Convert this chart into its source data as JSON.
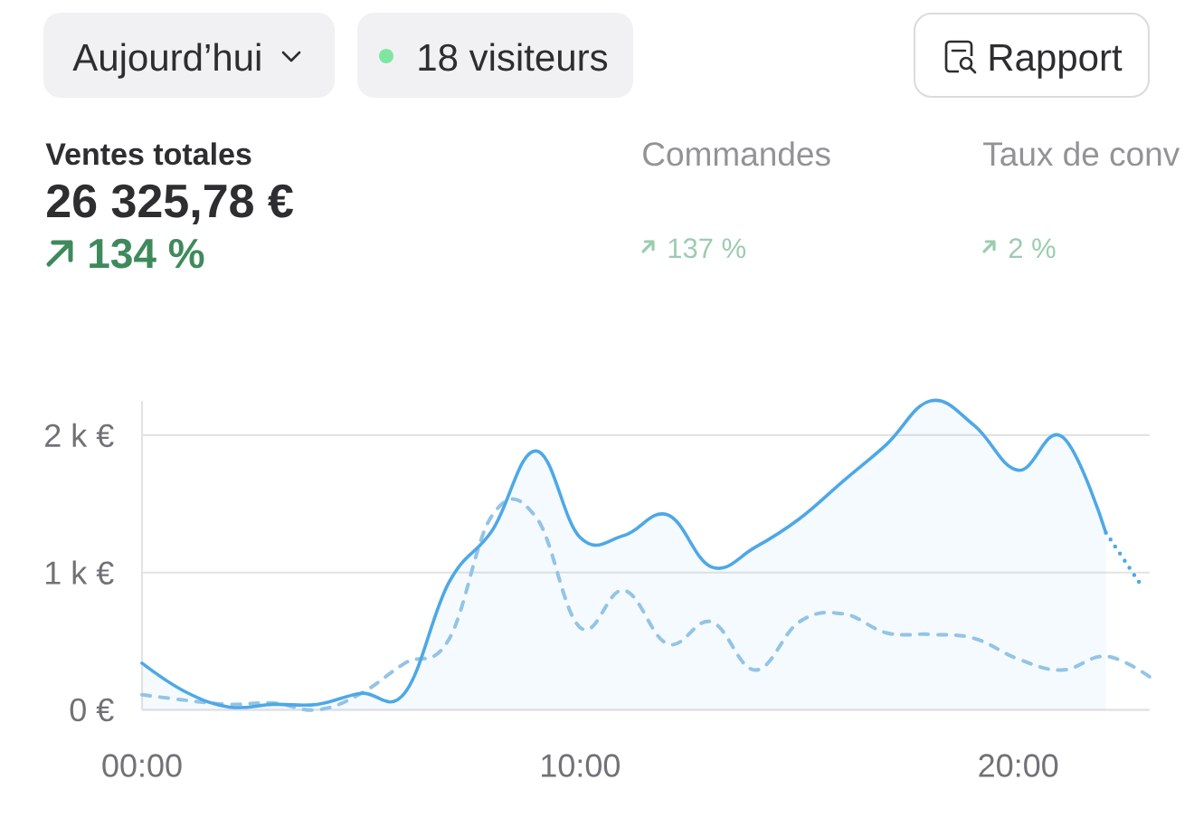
{
  "chart_data": {
    "type": "line",
    "title": "Ventes totales",
    "subtitle": "26 325,78 €",
    "annotations": [
      "Aujourd’hui",
      "18 visiteurs",
      "Rapport",
      "134 %",
      "Commandes",
      "137 %",
      "Taux de conv",
      "2 %"
    ],
    "xlim": [
      0,
      23
    ],
    "xticks": [
      {
        "value": 0,
        "label": "00:00"
      },
      {
        "value": 10,
        "label": "10:00"
      },
      {
        "value": 20,
        "label": "20:00"
      }
    ],
    "ylim": [
      0,
      2250
    ],
    "yticks": [
      {
        "value": 0,
        "label": "0 €"
      },
      {
        "value": 1000,
        "label": "1 k €"
      },
      {
        "value": 2000,
        "label": "2 k €"
      }
    ],
    "grid": "y",
    "series": [
      {
        "type": "line",
        "color": "#93c4e6",
        "line_style": "dashed",
        "x": [
          0,
          1,
          2,
          3,
          4,
          5,
          6,
          7,
          8,
          9,
          10,
          11,
          12,
          13,
          14,
          15,
          16,
          17,
          18,
          19,
          20,
          21,
          22,
          23
        ],
        "values": [
          110,
          70,
          40,
          50,
          0,
          120,
          340,
          510,
          1420,
          1400,
          600,
          870,
          480,
          640,
          290,
          640,
          700,
          560,
          550,
          520,
          370,
          290,
          390,
          240
        ]
      },
      {
        "type": "area",
        "color": "#4ea8e6",
        "line_style": "solid",
        "x": [
          0,
          1,
          2,
          3,
          4,
          5,
          6,
          7,
          8,
          9,
          10,
          11,
          12,
          13,
          14,
          15,
          16,
          17,
          18,
          19,
          20,
          21,
          22
        ],
        "values": [
          340,
          130,
          20,
          40,
          40,
          120,
          125,
          925,
          1310,
          1885,
          1255,
          1270,
          1420,
          1040,
          1185,
          1390,
          1665,
          1935,
          2250,
          2070,
          1745,
          1990,
          1290
        ]
      },
      {
        "type": "line",
        "color": "#4ea8e6",
        "line_style": "dotted",
        "x": [
          22,
          22.8
        ],
        "values": [
          1290,
          910
        ]
      }
    ]
  }
}
